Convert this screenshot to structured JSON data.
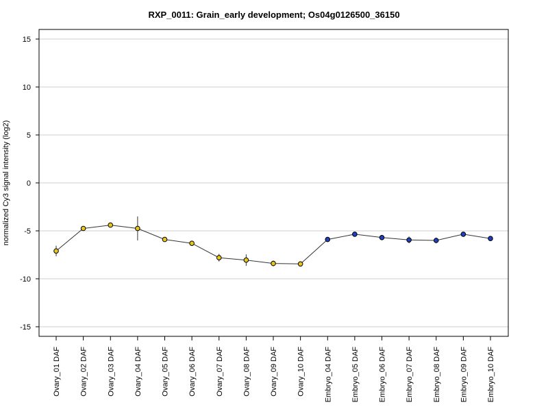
{
  "chart_data": {
    "type": "line",
    "title": "RXP_0011: Grain_early development; Os04g0126500_36150",
    "ylabel": "normalized Cy3 signal intensity (log2)",
    "xlabel": "",
    "ylim": [
      -16,
      16
    ],
    "yticks": [
      15,
      10,
      5,
      0,
      -5,
      -10,
      -15
    ],
    "grid": true,
    "categories": [
      "Ovary_01 DAF",
      "Ovary_02 DAF",
      "Ovary_03 DAF",
      "Ovary_04 DAF",
      "Ovary_05 DAF",
      "Ovary_06 DAF",
      "Ovary_07 DAF",
      "Ovary_08 DAF",
      "Ovary_09 DAF",
      "Ovary_10 DAF",
      "Embryo_04 DAF",
      "Embryo_05 DAF",
      "Embryo_06 DAF",
      "Embryo_07 DAF",
      "Embryo_08 DAF",
      "Embryo_09 DAF",
      "Embryo_10 DAF"
    ],
    "values": [
      -7.1,
      -4.75,
      -4.4,
      -4.75,
      -5.9,
      -6.3,
      -7.8,
      -8.05,
      -8.4,
      -8.45,
      -5.9,
      -5.35,
      -5.7,
      -5.95,
      -6.0,
      -5.35,
      -5.8
    ],
    "error": [
      0.55,
      0.2,
      0.15,
      1.25,
      0.2,
      0.15,
      0.4,
      0.6,
      0.3,
      0.15,
      0.1,
      0.1,
      0.15,
      0.35,
      0.3,
      0.1,
      0.1
    ],
    "point_colors": [
      "#e6c619",
      "#e6c619",
      "#e6c619",
      "#e6c619",
      "#e6c619",
      "#e6c619",
      "#e6c619",
      "#e6c619",
      "#e6c619",
      "#e6c619",
      "#1f3fbf",
      "#1f3fbf",
      "#1f3fbf",
      "#1f3fbf",
      "#1f3fbf",
      "#1f3fbf",
      "#1f3fbf"
    ],
    "line_color": "#333333",
    "grid_color": "#cccccc"
  }
}
